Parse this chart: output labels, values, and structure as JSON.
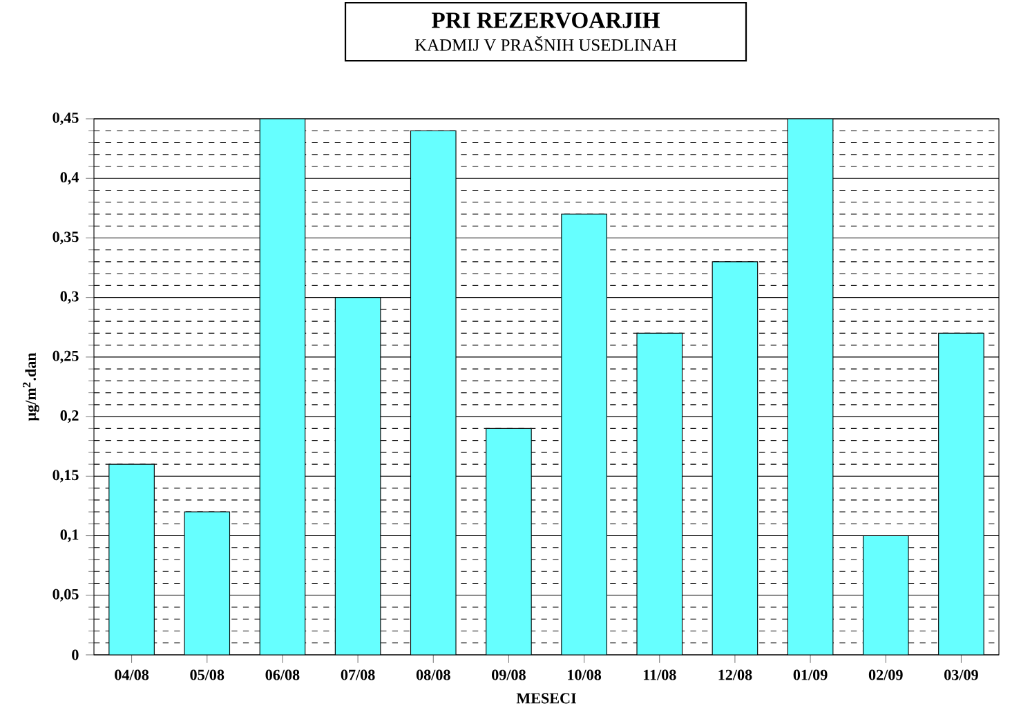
{
  "chart_data": {
    "type": "bar",
    "title": "PRI REZERVOARJIH",
    "subtitle": "KADMIJ V PRAŠNIH USEDLINAH",
    "xlabel": "MESECI",
    "ylabel": "µg/m$^{2}$.dan",
    "categories": [
      "04/08",
      "05/08",
      "06/08",
      "07/08",
      "08/08",
      "09/08",
      "10/08",
      "11/08",
      "12/08",
      "01/09",
      "02/09",
      "03/09"
    ],
    "values": [
      0.16,
      0.12,
      0.45,
      0.3,
      0.44,
      0.19,
      0.37,
      0.27,
      0.33,
      0.45,
      0.1,
      0.27
    ],
    "color": "#66ffff",
    "ylim": [
      0,
      0.45
    ],
    "yticks": [
      {
        "value": 0,
        "label": "0"
      },
      {
        "value": 0.05,
        "label": "0,05"
      },
      {
        "value": 0.1,
        "label": "0,1"
      },
      {
        "value": 0.15,
        "label": "0,15"
      },
      {
        "value": 0.2,
        "label": "0,2"
      },
      {
        "value": 0.25,
        "label": "0,25"
      },
      {
        "value": 0.3,
        "label": "0,3"
      },
      {
        "value": 0.35,
        "label": "0,35"
      },
      {
        "value": 0.4,
        "label": "0,4"
      },
      {
        "value": 0.45,
        "label": "0,45"
      }
    ],
    "grid": true
  }
}
